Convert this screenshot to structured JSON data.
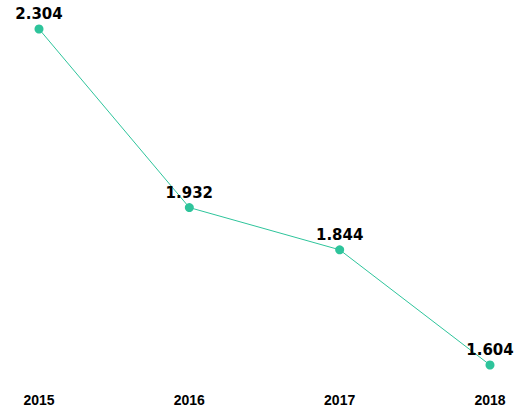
{
  "chart_data": {
    "type": "line",
    "categories": [
      "2015",
      "2016",
      "2017",
      "2018"
    ],
    "values": [
      2.304,
      1.932,
      1.844,
      1.604
    ],
    "color": "#2ec49b",
    "ylim": [
      1.604,
      2.304
    ],
    "data_labels": true,
    "tick_labels": "x",
    "grid": false,
    "marker": "circle"
  }
}
